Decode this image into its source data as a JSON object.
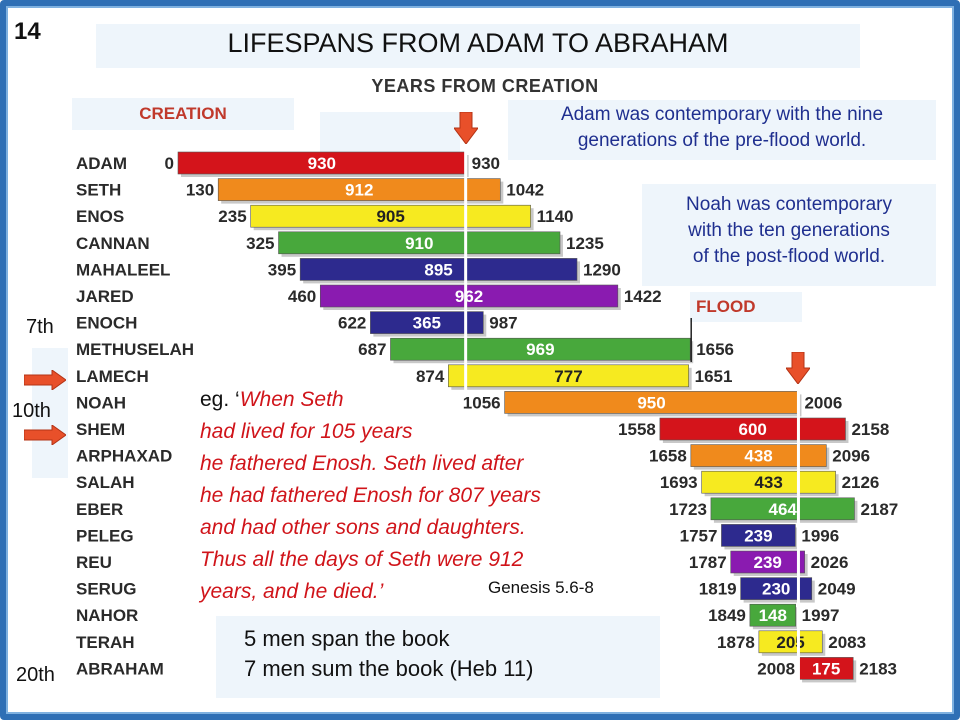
{
  "slide_number": "14",
  "title": "LIFESPANS FROM ADAM TO ABRAHAM",
  "years_header": "YEARS FROM CREATION",
  "creation_label": "CREATION",
  "flood_label": "FLOOD",
  "note_adam": [
    "Adam was contemporary with the nine",
    "generations of the pre-flood world."
  ],
  "note_noah": [
    "Noah was contemporary",
    "with the ten generations",
    "of the post-flood world."
  ],
  "generation_labels": {
    "seventh": "7th",
    "tenth": "10th",
    "twentieth": "20th"
  },
  "quote": {
    "prefix": "eg. ‘",
    "lines": [
      "When Seth",
      "had lived for 105 years",
      "he fathered Enosh. Seth lived after",
      "he had fathered Enosh for 807 years",
      "and had other sons and daughters.",
      "Thus all the days of Seth were 912",
      "years, and he died.’"
    ],
    "reference": "Genesis 5.6-8"
  },
  "bottom_lines": [
    "5 men span the book",
    "7 men sum the book  (Heb 11)"
  ],
  "colors": {
    "red": "#d4141b",
    "orange": "#f08a1c",
    "yellow": "#f6ea20",
    "green": "#48a83c",
    "indigo": "#2d2a8e",
    "purple": "#8a1bb0",
    "accent_text": "#c0392b",
    "note_text": "#1f2f8f"
  },
  "chart_data": {
    "type": "bar",
    "orientation": "horizontal-gantt",
    "x_label": "YEARS FROM CREATION",
    "markers": [
      {
        "label": "CREATION",
        "year": 0
      },
      {
        "label": "FLOOD",
        "year": 1656
      }
    ],
    "reference_lines": [
      930,
      2006
    ],
    "rows": [
      {
        "name": "ADAM",
        "start": 0,
        "lifespan": 930,
        "end": 930,
        "color": "#d4141b"
      },
      {
        "name": "SETH",
        "start": 130,
        "lifespan": 912,
        "end": 1042,
        "color": "#f08a1c"
      },
      {
        "name": "ENOS",
        "start": 235,
        "lifespan": 905,
        "end": 1140,
        "color": "#f6ea20"
      },
      {
        "name": "CANNAN",
        "start": 325,
        "lifespan": 910,
        "end": 1235,
        "color": "#48a83c"
      },
      {
        "name": "MAHALEEL",
        "start": 395,
        "lifespan": 895,
        "end": 1290,
        "color": "#2d2a8e"
      },
      {
        "name": "JARED",
        "start": 460,
        "lifespan": 962,
        "end": 1422,
        "color": "#8a1bb0"
      },
      {
        "name": "ENOCH",
        "start": 622,
        "lifespan": 365,
        "end": 987,
        "color": "#2d2a8e"
      },
      {
        "name": "METHUSELAH",
        "start": 687,
        "lifespan": 969,
        "end": 1656,
        "color": "#48a83c"
      },
      {
        "name": "LAMECH",
        "start": 874,
        "lifespan": 777,
        "end": 1651,
        "color": "#f6ea20"
      },
      {
        "name": "NOAH",
        "start": 1056,
        "lifespan": 950,
        "end": 2006,
        "color": "#f08a1c"
      },
      {
        "name": "SHEM",
        "start": 1558,
        "lifespan": 600,
        "end": 2158,
        "color": "#d4141b"
      },
      {
        "name": "ARPHAXAD",
        "start": 1658,
        "lifespan": 438,
        "end": 2096,
        "color": "#f08a1c"
      },
      {
        "name": "SALAH",
        "start": 1693,
        "lifespan": 433,
        "end": 2126,
        "color": "#f6ea20"
      },
      {
        "name": "EBER",
        "start": 1723,
        "lifespan": 464,
        "end": 2187,
        "color": "#48a83c"
      },
      {
        "name": "PELEG",
        "start": 1757,
        "lifespan": 239,
        "end": 1996,
        "color": "#2d2a8e"
      },
      {
        "name": "REU",
        "start": 1787,
        "lifespan": 239,
        "end": 2026,
        "color": "#8a1bb0"
      },
      {
        "name": "SERUG",
        "start": 1819,
        "lifespan": 230,
        "end": 2049,
        "color": "#2d2a8e"
      },
      {
        "name": "NAHOR",
        "start": 1849,
        "lifespan": 148,
        "end": 1997,
        "color": "#48a83c"
      },
      {
        "name": "TERAH",
        "start": 1878,
        "lifespan": 205,
        "end": 2083,
        "color": "#f6ea20"
      },
      {
        "name": "ABRAHAM",
        "start": 2008,
        "lifespan": 175,
        "end": 2183,
        "color": "#d4141b"
      }
    ]
  }
}
